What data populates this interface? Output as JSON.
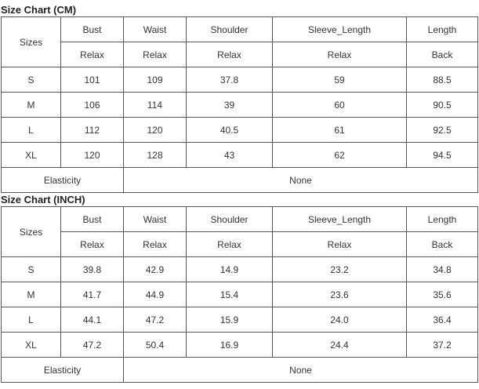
{
  "tables": [
    {
      "title": "Size Chart (CM)",
      "headers": [
        "Sizes",
        "Bust",
        "Waist",
        "Shoulder",
        "Sleeve_Length",
        "Length"
      ],
      "subheaders": [
        "Relax",
        "Relax",
        "Relax",
        "Relax",
        "Back"
      ],
      "rows": [
        [
          "S",
          "101",
          "109",
          "37.8",
          "59",
          "88.5"
        ],
        [
          "M",
          "106",
          "114",
          "39",
          "60",
          "90.5"
        ],
        [
          "L",
          "112",
          "120",
          "40.5",
          "61",
          "92.5"
        ],
        [
          "XL",
          "120",
          "128",
          "43",
          "62",
          "94.5"
        ]
      ],
      "footer": {
        "label": "Elasticity",
        "value": "None"
      }
    },
    {
      "title": "Size Chart (INCH)",
      "headers": [
        "Sizes",
        "Bust",
        "Waist",
        "Shoulder",
        "Sleeve_Length",
        "Length"
      ],
      "subheaders": [
        "Relax",
        "Relax",
        "Relax",
        "Relax",
        "Back"
      ],
      "rows": [
        [
          "S",
          "39.8",
          "42.9",
          "14.9",
          "23.2",
          "34.8"
        ],
        [
          "M",
          "41.7",
          "44.9",
          "15.4",
          "23.6",
          "35.6"
        ],
        [
          "L",
          "44.1",
          "47.2",
          "15.9",
          "24.0",
          "36.4"
        ],
        [
          "XL",
          "47.2",
          "50.4",
          "16.9",
          "24.4",
          "37.2"
        ]
      ],
      "footer": {
        "label": "Elasticity",
        "value": "None"
      }
    }
  ]
}
